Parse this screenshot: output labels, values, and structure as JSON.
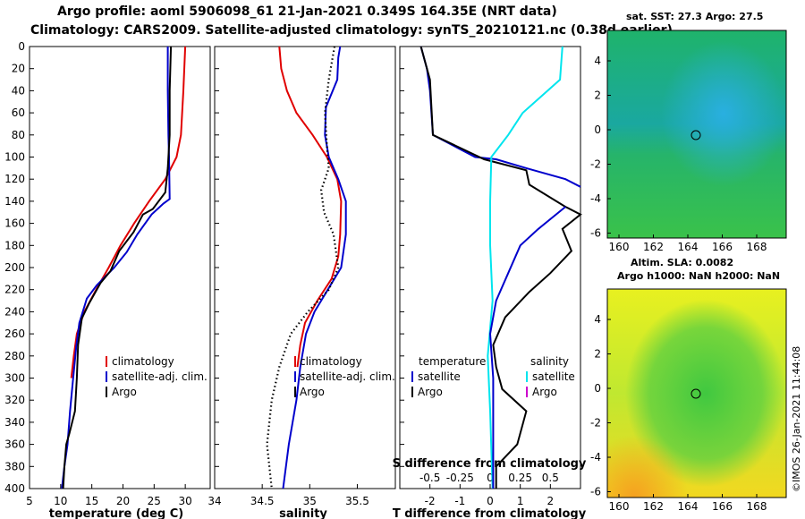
{
  "header": {
    "title_line1": "Argo profile: aoml 5906098_61 21-Jan-2021 0.349S 164.35E (NRT data)",
    "title_line2": "Climatology: CARS2009. Satellite-adjusted climatology: synTS_20210121.nc (0.38d earlier)"
  },
  "depth_axis": {
    "ticks": [
      0,
      20,
      40,
      60,
      80,
      100,
      120,
      140,
      160,
      180,
      200,
      220,
      240,
      260,
      280,
      300,
      320,
      340,
      360,
      380,
      400
    ],
    "range": [
      0,
      400
    ]
  },
  "panels": {
    "temperature": {
      "xlabel": "temperature (deg C)",
      "xticks": [
        "5",
        "10",
        "15",
        "20",
        "25",
        "30"
      ],
      "legend": [
        "climatology",
        "satellite-adj. clim.",
        "Argo"
      ]
    },
    "salinity": {
      "xlabel": "salinity",
      "xticks": [
        "34",
        "34.5",
        "35",
        "35.5"
      ],
      "legend": [
        "climatology",
        "satellite-adj. clim.",
        "Argo"
      ]
    },
    "difference": {
      "xlabel": "T difference from climatology",
      "xticks": [
        "-2",
        "-1",
        "0",
        "1",
        "2"
      ],
      "top_label": "S difference from climatology",
      "top_ticks": [
        "-0.5",
        "-0.25",
        "0",
        "0.25",
        "0.5"
      ],
      "legend_t_title": "temperature",
      "legend_s_title": "salinity",
      "legend_t": [
        "satellite",
        "Argo"
      ],
      "legend_s": [
        "satellite",
        "Argo"
      ]
    }
  },
  "maps": {
    "sst": {
      "title": "sat. SST: 27.3 Argo: 27.5",
      "xticks": [
        "160",
        "162",
        "164",
        "166",
        "168"
      ],
      "yticks": [
        "4",
        "2",
        "0",
        "-2",
        "-4",
        "-6"
      ]
    },
    "sla": {
      "title1": "Altim. SLA: 0.0082",
      "title2": "Argo h1000: NaN h2000: NaN",
      "xticks": [
        "160",
        "162",
        "164",
        "166",
        "168"
      ],
      "yticks": [
        "4",
        "2",
        "0",
        "-2",
        "-4",
        "-6"
      ]
    }
  },
  "credit": "©IMOS 26-Jan-2021 11:44:08",
  "colors": {
    "clim": "#e00000",
    "sat": "#0000cc",
    "argo": "#000000",
    "cyan": "#00e5ee",
    "magenta": "#cc00cc"
  },
  "chart_data": [
    {
      "type": "line",
      "title": "temperature profile",
      "xlabel": "temperature (deg C)",
      "ylabel": "depth",
      "xlim": [
        5,
        34
      ],
      "ylim": [
        400,
        0
      ],
      "series": [
        {
          "name": "climatology",
          "color": "#e00000",
          "points": [
            [
              30,
              0
            ],
            [
              29.7,
              40
            ],
            [
              29.3,
              80
            ],
            [
              28.6,
              100
            ],
            [
              26.8,
              120
            ],
            [
              24.2,
              140
            ],
            [
              21.8,
              160
            ],
            [
              19.6,
              180
            ],
            [
              17.7,
              200
            ],
            [
              15.7,
              220
            ],
            [
              13.8,
              240
            ],
            [
              12.6,
              260
            ],
            [
              12.1,
              280
            ],
            [
              11.7,
              300
            ]
          ]
        },
        {
          "name": "satellite-adj. clim.",
          "color": "#0000cc",
          "points": [
            [
              27.2,
              0
            ],
            [
              27.2,
              40
            ],
            [
              27.3,
              80
            ],
            [
              27.4,
              100
            ],
            [
              27.5,
              138
            ],
            [
              26.5,
              142
            ],
            [
              24.6,
              152
            ],
            [
              22.3,
              170
            ],
            [
              20.6,
              186
            ],
            [
              18.6,
              200
            ],
            [
              15.8,
              216
            ],
            [
              14.2,
              228
            ],
            [
              13.0,
              250
            ],
            [
              12.5,
              272
            ],
            [
              12.0,
              300
            ],
            [
              11.5,
              330
            ],
            [
              11.1,
              360
            ],
            [
              10.6,
              380
            ],
            [
              10.2,
              400
            ]
          ]
        },
        {
          "name": "Argo",
          "color": "#000000",
          "points": [
            [
              27.7,
              0
            ],
            [
              27.5,
              40
            ],
            [
              27.5,
              80
            ],
            [
              27.2,
              110
            ],
            [
              26.8,
              132
            ],
            [
              24.8,
              147
            ],
            [
              23.2,
              152
            ],
            [
              21.7,
              168
            ],
            [
              19.4,
              185
            ],
            [
              18.0,
              203
            ],
            [
              16.4,
              214
            ],
            [
              14.6,
              232
            ],
            [
              13.4,
              246
            ],
            [
              12.8,
              270
            ],
            [
              12.6,
              300
            ],
            [
              12.3,
              330
            ],
            [
              11.4,
              350
            ],
            [
              10.9,
              360
            ],
            [
              10.6,
              380
            ],
            [
              10.4,
              400
            ]
          ]
        }
      ]
    },
    {
      "type": "line",
      "title": "salinity profile",
      "xlabel": "salinity",
      "ylabel": "depth",
      "xlim": [
        34,
        35.9
      ],
      "ylim": [
        400,
        0
      ],
      "series": [
        {
          "name": "climatology",
          "color": "#e00000",
          "points": [
            [
              34.68,
              0
            ],
            [
              34.7,
              20
            ],
            [
              34.76,
              40
            ],
            [
              34.86,
              60
            ],
            [
              35.03,
              80
            ],
            [
              35.18,
              100
            ],
            [
              35.29,
              120
            ],
            [
              35.33,
              140
            ],
            [
              35.32,
              170
            ],
            [
              35.3,
              190
            ],
            [
              35.23,
              210
            ],
            [
              35.08,
              230
            ],
            [
              34.95,
              250
            ],
            [
              34.9,
              270
            ],
            [
              34.87,
              290
            ]
          ]
        },
        {
          "name": "satellite-adj. clim.",
          "color": "#0000cc",
          "points": [
            [
              35.32,
              0
            ],
            [
              35.3,
              10
            ],
            [
              35.29,
              30
            ],
            [
              35.17,
              55
            ],
            [
              35.16,
              80
            ],
            [
              35.2,
              100
            ],
            [
              35.3,
              120
            ],
            [
              35.38,
              140
            ],
            [
              35.38,
              170
            ],
            [
              35.33,
              200
            ],
            [
              35.19,
              220
            ],
            [
              35.05,
              240
            ],
            [
              34.96,
              260
            ],
            [
              34.9,
              290
            ],
            [
              34.86,
              320
            ],
            [
              34.78,
              360
            ],
            [
              34.72,
              400
            ]
          ]
        },
        {
          "name": "Argo",
          "color": "#000000",
          "style": "dotted",
          "points": [
            [
              35.26,
              0
            ],
            [
              35.2,
              30
            ],
            [
              35.16,
              60
            ],
            [
              35.18,
              90
            ],
            [
              35.2,
              110
            ],
            [
              35.12,
              130
            ],
            [
              35.15,
              150
            ],
            [
              35.25,
              170
            ],
            [
              35.3,
              200
            ],
            [
              35.2,
              220
            ],
            [
              34.98,
              240
            ],
            [
              34.8,
              260
            ],
            [
              34.68,
              290
            ],
            [
              34.6,
              320
            ],
            [
              34.55,
              360
            ],
            [
              34.6,
              400
            ]
          ]
        }
      ]
    },
    {
      "type": "line",
      "title": "difference profile",
      "xlabel": "T difference from climatology",
      "x2label": "S difference from climatology",
      "xlim": [
        -3,
        3
      ],
      "x2lim": [
        -0.75,
        0.75
      ],
      "ylim": [
        400,
        0
      ],
      "series": [
        {
          "name": "temperature satellite",
          "axis": "T",
          "color": "#0000cc",
          "points": [
            [
              -2.3,
              0
            ],
            [
              -2.1,
              20
            ],
            [
              -2.0,
              40
            ],
            [
              -1.9,
              80
            ],
            [
              -0.5,
              100
            ],
            [
              0.2,
              102
            ],
            [
              1.2,
              110
            ],
            [
              2.5,
              120
            ],
            [
              3,
              127
            ]
          ]
        },
        {
          "name": "temperature Argo",
          "axis": "T",
          "color": "#000000",
          "points": [
            [
              -2.3,
              0
            ],
            [
              -2.0,
              30
            ],
            [
              -1.9,
              80
            ],
            [
              -0.2,
              102
            ],
            [
              1.2,
              112
            ],
            [
              1.3,
              125
            ],
            [
              2.5,
              145
            ],
            [
              3,
              152
            ],
            [
              2.4,
              165
            ],
            [
              2.7,
              185
            ],
            [
              2.0,
              205
            ],
            [
              1.3,
              222
            ],
            [
              0.5,
              245
            ],
            [
              0.1,
              270
            ],
            [
              0.2,
              290
            ],
            [
              0.4,
              310
            ],
            [
              1.2,
              330
            ],
            [
              0.9,
              360
            ],
            [
              0.2,
              380
            ],
            [
              0.2,
              400
            ]
          ]
        },
        {
          "name": "salinity satellite",
          "axis": "S",
          "color": "#00e5ee",
          "points": [
            [
              0.6,
              0
            ],
            [
              0.58,
              30
            ],
            [
              0.27,
              60
            ],
            [
              0.15,
              80
            ],
            [
              0.01,
              100
            ],
            [
              0.0,
              140
            ],
            [
              0.0,
              180
            ],
            [
              0.02,
              230
            ],
            [
              -0.02,
              280
            ],
            [
              0.0,
              330
            ],
            [
              0.02,
              400
            ]
          ]
        },
        {
          "name": "temperature satellite (deep)",
          "axis": "T",
          "color": "#0000cc",
          "points": [
            [
              2.5,
              145
            ],
            [
              1.6,
              165
            ],
            [
              1.0,
              180
            ],
            [
              0.6,
              205
            ],
            [
              0.2,
              230
            ],
            [
              0.0,
              260
            ],
            [
              0.1,
              300
            ],
            [
              0.1,
              360
            ],
            [
              0.1,
              400
            ]
          ]
        }
      ]
    }
  ]
}
